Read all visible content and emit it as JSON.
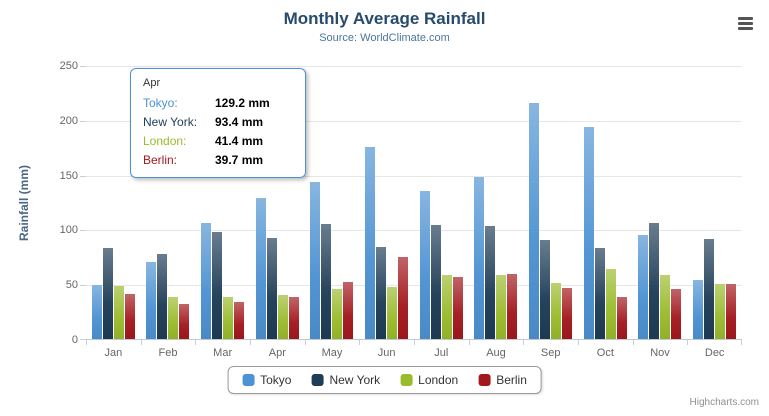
{
  "chart": {
    "credits": "Highcharts.com",
    "icons": {
      "menu": "hamburger-icon"
    }
  },
  "chart_data": {
    "type": "bar",
    "title": "Monthly Average Rainfall",
    "subtitle": "Source: WorldClimate.com",
    "ylabel": "Rainfall (mm)",
    "xlabel": "",
    "ylim": [
      0,
      250
    ],
    "yticks": [
      0,
      50,
      100,
      150,
      200,
      250
    ],
    "grid": true,
    "legend_position": "bottom",
    "categories": [
      "Jan",
      "Feb",
      "Mar",
      "Apr",
      "May",
      "Jun",
      "Jul",
      "Aug",
      "Sep",
      "Oct",
      "Nov",
      "Dec"
    ],
    "series": [
      {
        "name": "Tokyo",
        "color": "#4d92d2",
        "values": [
          49.9,
          71.5,
          106.4,
          129.2,
          144.0,
          176.0,
          135.6,
          148.5,
          216.4,
          194.1,
          95.6,
          54.4
        ]
      },
      {
        "name": "New York",
        "color": "#1f3d57",
        "values": [
          83.6,
          78.8,
          98.5,
          93.4,
          106.0,
          84.5,
          105.0,
          104.3,
          91.2,
          83.5,
          106.6,
          92.3
        ]
      },
      {
        "name": "London",
        "color": "#9abb2c",
        "values": [
          48.9,
          38.8,
          39.3,
          41.4,
          47.0,
          48.3,
          59.0,
          59.6,
          52.4,
          65.2,
          59.3,
          51.2
        ]
      },
      {
        "name": "Berlin",
        "color": "#a3181d",
        "values": [
          42.4,
          33.2,
          34.5,
          39.7,
          52.6,
          75.5,
          57.4,
          60.4,
          47.6,
          39.1,
          46.8,
          51.1
        ]
      }
    ],
    "tooltip": {
      "header": "Apr",
      "rows": [
        {
          "name": "Tokyo",
          "value": "129.2 mm"
        },
        {
          "name": "New York",
          "value": "93.4 mm"
        },
        {
          "name": "London",
          "value": "41.4 mm"
        },
        {
          "name": "Berlin",
          "value": "39.7 mm"
        }
      ]
    }
  }
}
